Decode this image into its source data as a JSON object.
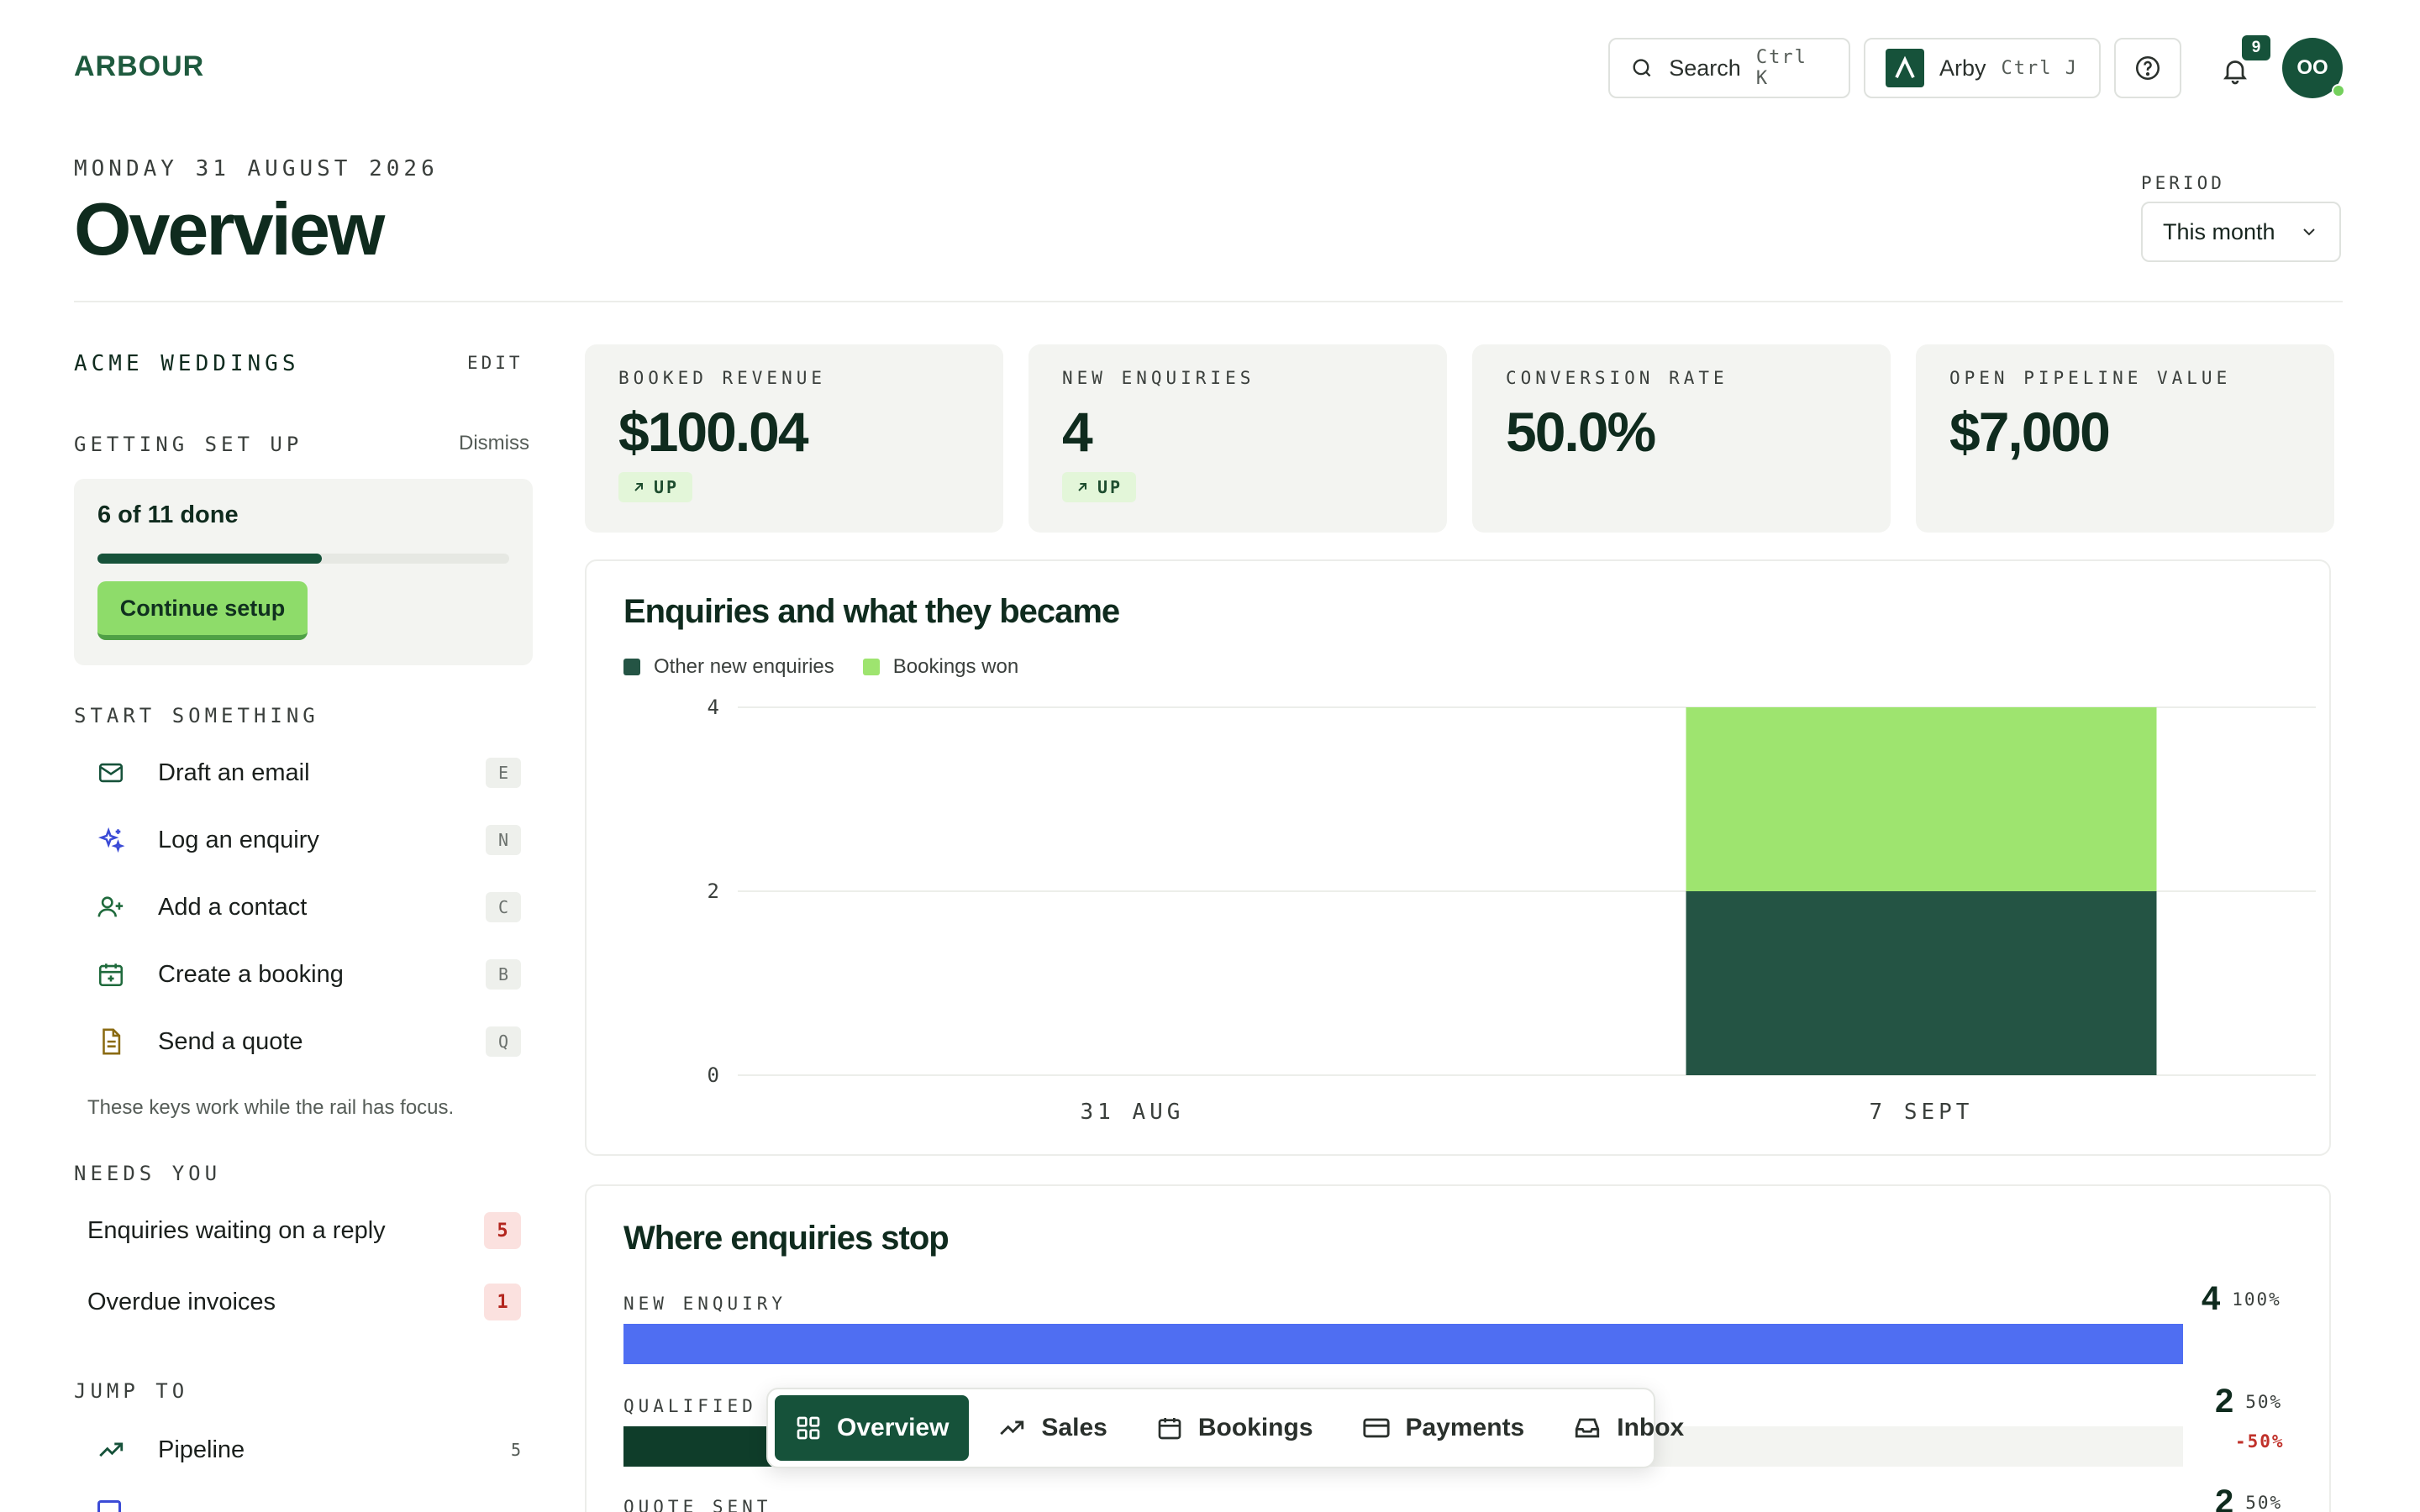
{
  "brand": {
    "logo_text": "ARBOUR"
  },
  "header": {
    "search_label": "Search",
    "search_shortcut": "Ctrl K",
    "assistant_label": "Arby",
    "assistant_shortcut": "Ctrl J",
    "notifications_count": "9",
    "avatar_initials": "OO",
    "help_icon": "help-circle-icon",
    "bell_icon": "bell-icon"
  },
  "page": {
    "date": "MONDAY 31 AUGUST 2026",
    "title": "Overview",
    "period_label": "PERIOD",
    "period_value": "This month"
  },
  "rail": {
    "account_name": "ACME WEDDINGS",
    "edit_label": "EDIT",
    "setup": {
      "heading": "GETTING SET UP",
      "dismiss_label": "Dismiss",
      "progress_text": "6 of 11 done",
      "done": 6,
      "total": 11,
      "button_label": "Continue setup"
    },
    "start": {
      "heading": "START SOMETHING",
      "actions": [
        {
          "label": "Draft an email",
          "key": "E",
          "icon": "mail-icon"
        },
        {
          "label": "Log an enquiry",
          "key": "N",
          "icon": "sparkles-icon"
        },
        {
          "label": "Add a contact",
          "key": "C",
          "icon": "user-plus-icon"
        },
        {
          "label": "Create a booking",
          "key": "B",
          "icon": "calendar-plus-icon"
        },
        {
          "label": "Send a quote",
          "key": "Q",
          "icon": "document-icon"
        }
      ],
      "hint": "These keys work while the rail has focus."
    },
    "needs": {
      "heading": "NEEDS YOU",
      "items": [
        {
          "label": "Enquiries waiting on a reply",
          "count": "5"
        },
        {
          "label": "Overdue invoices",
          "count": "1"
        }
      ]
    },
    "jump": {
      "heading": "JUMP TO",
      "items": [
        {
          "label": "Pipeline",
          "count": "5",
          "icon": "trending-up-icon"
        }
      ]
    }
  },
  "kpis": [
    {
      "label": "BOOKED REVENUE",
      "value": "$100.04",
      "trend": "UP"
    },
    {
      "label": "NEW ENQUIRIES",
      "value": "4",
      "trend": "UP"
    },
    {
      "label": "CONVERSION RATE",
      "value": "50.0%"
    },
    {
      "label": "OPEN PIPELINE VALUE",
      "value": "$7,000"
    }
  ],
  "enquiries_chart": {
    "title": "Enquiries and what they became",
    "legend": [
      "Other new enquiries",
      "Bookings won"
    ],
    "colors": {
      "other": "#245444",
      "won": "#9ee46f"
    }
  },
  "chart_data": {
    "type": "bar",
    "categories": [
      "31 AUG",
      "7 SEPT"
    ],
    "series": [
      {
        "name": "Other new enquiries",
        "values": [
          0,
          2
        ]
      },
      {
        "name": "Bookings won",
        "values": [
          0,
          2
        ]
      }
    ],
    "stacked": true,
    "ylim": [
      0,
      4
    ],
    "yticks": [
      0,
      2,
      4
    ],
    "grid": true,
    "legend_position": "top-left"
  },
  "funnel": {
    "title": "Where enquiries stop",
    "stages": [
      {
        "label": "NEW ENQUIRY",
        "count": "4",
        "pct": "100%",
        "fraction": 1.0,
        "drop": "",
        "color": "#4f6ef2"
      },
      {
        "label": "QUALIFIED",
        "count": "2",
        "pct": "50%",
        "fraction": 0.5,
        "drop": "-50%",
        "color": "#0f3d2a"
      },
      {
        "label": "QUOTE SENT",
        "count": "2",
        "pct": "50%",
        "fraction": 0.5,
        "drop": "",
        "color": "#0f3d2a"
      }
    ]
  },
  "bottom_nav": [
    {
      "label": "Overview",
      "icon": "grid-icon",
      "active": true
    },
    {
      "label": "Sales",
      "icon": "trending-up-icon"
    },
    {
      "label": "Bookings",
      "icon": "calendar-icon"
    },
    {
      "label": "Payments",
      "icon": "credit-card-icon"
    },
    {
      "label": "Inbox",
      "icon": "inbox-icon"
    }
  ]
}
